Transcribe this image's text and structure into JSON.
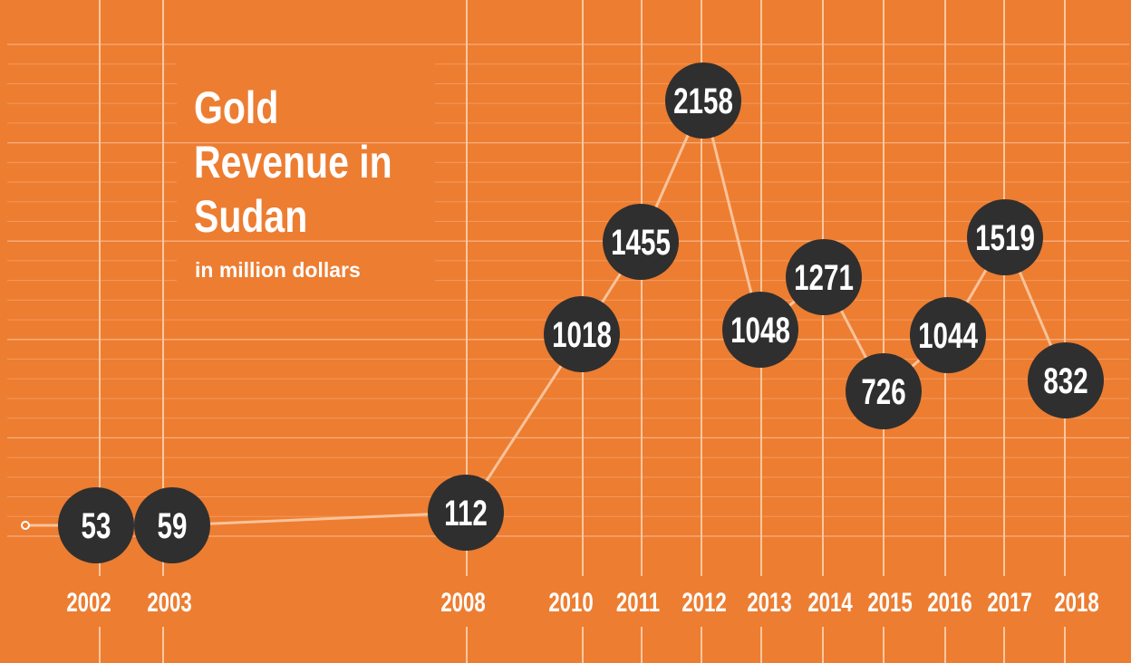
{
  "colors": {
    "background": "#ED7D31",
    "grid_minor": "#F29A5C",
    "grid_major": "#F6B07F",
    "grid_vertical": "#FCC79E",
    "line": "#F9C39A",
    "marker": "#2F2F2F",
    "text": "#FFFFFF"
  },
  "chart_data": {
    "type": "line",
    "title": "Gold Revenue in Sudan",
    "title_lines": [
      "Gold",
      "Revenue in",
      "Sudan"
    ],
    "subtitle": "in million dollars",
    "xlabel": "",
    "ylabel": "",
    "unit": "million dollars",
    "grid": true,
    "legend": "none",
    "x": [
      "2002",
      "2003",
      "2008",
      "2010",
      "2011",
      "2012",
      "2013",
      "2014",
      "2015",
      "2016",
      "2017",
      "2018"
    ],
    "series": [
      {
        "name": "Gold Revenue",
        "values": [
          53,
          59,
          112,
          1018,
          1455,
          2158,
          1048,
          1271,
          726,
          1044,
          1519,
          832
        ]
      }
    ],
    "data_labels": [
      "53",
      "59",
      "112",
      "1018",
      "1455",
      "2158",
      "1048",
      "1271",
      "726",
      "1044",
      "1519",
      "832"
    ]
  }
}
